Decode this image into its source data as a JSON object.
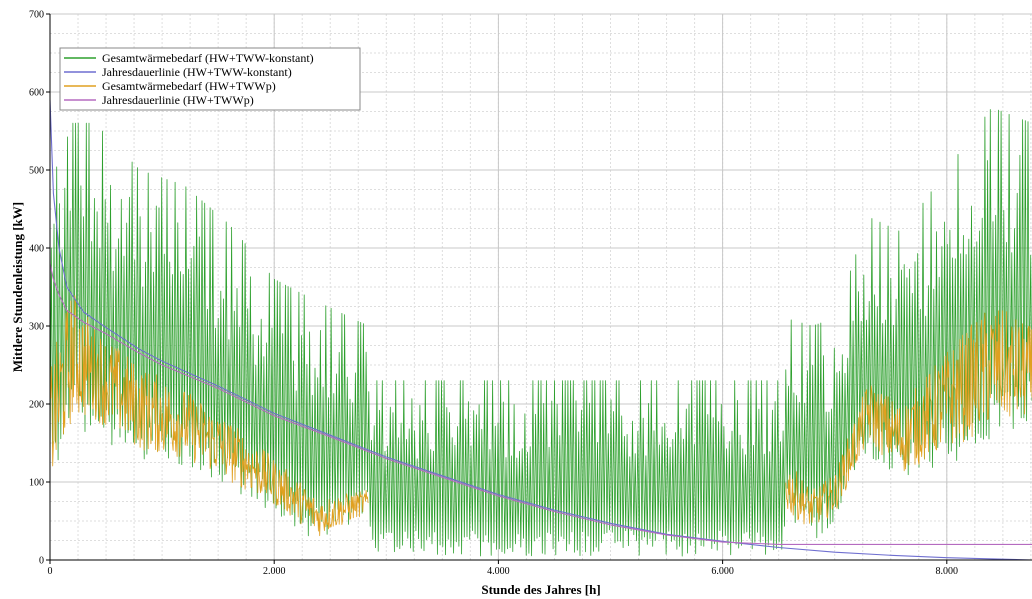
{
  "chart_data": {
    "type": "line",
    "title": "",
    "xlabel": "Stunde des Jahres [h]",
    "ylabel": "Mittlere Stundenleistung [kW]",
    "xlim": [
      0,
      8760
    ],
    "ylim": [
      0,
      700
    ],
    "x_ticks": [
      0,
      2000,
      4000,
      6000,
      8000
    ],
    "x_tick_labels": [
      "0",
      "2.000",
      "4.000",
      "6.000",
      "8.000"
    ],
    "y_ticks": [
      0,
      100,
      200,
      300,
      400,
      500,
      600,
      700
    ],
    "y_tick_labels": [
      "0",
      "100",
      "200",
      "300",
      "400",
      "500",
      "600",
      "700"
    ],
    "grid": true,
    "legend_position": "top-left",
    "series": [
      {
        "name": "Gesamtwärmebedarf (HW+TWW-konstant)",
        "color": "#2ea02e",
        "style": "daily-oscillating",
        "envelope": {
          "x": [
            0,
            200,
            400,
            800,
            1200,
            1600,
            2000,
            2400,
            2840,
            2860,
            4000,
            5000,
            6000,
            6540,
            6560,
            6800,
            7000,
            7300,
            7600,
            8000,
            8400,
            8760
          ],
          "low": [
            80,
            180,
            150,
            130,
            120,
            90,
            60,
            20,
            60,
            5,
            5,
            5,
            5,
            5,
            60,
            20,
            50,
            130,
            100,
            120,
            150,
            180
          ],
          "high": [
            480,
            560,
            560,
            500,
            480,
            430,
            360,
            330,
            300,
            230,
            230,
            230,
            230,
            230,
            310,
            300,
            310,
            440,
            420,
            500,
            580,
            560
          ]
        }
      },
      {
        "name": "Jahresdauerlinie (HW+TWW-konstant)",
        "color": "#6f6fd0",
        "style": "smooth",
        "x": [
          0,
          30,
          80,
          150,
          300,
          500,
          800,
          1000,
          1500,
          2000,
          2500,
          3000,
          3500,
          4000,
          4500,
          5000,
          5500,
          6000,
          6500,
          7000,
          7500,
          8000,
          8500,
          8760
        ],
        "y": [
          590,
          470,
          400,
          350,
          318,
          298,
          270,
          255,
          223,
          188,
          160,
          132,
          108,
          84,
          64,
          47,
          33,
          24,
          16,
          10,
          6,
          3,
          1,
          0
        ]
      },
      {
        "name": "Gesamtwärmebedarf (HW+TWWp)",
        "color": "#e0a020",
        "style": "noisy",
        "envelope": {
          "x": [
            0,
            200,
            400,
            800,
            1200,
            1600,
            2000,
            2400,
            2840,
            2860,
            6540,
            6560,
            6800,
            7000,
            7300,
            7600,
            8000,
            8400,
            8760
          ],
          "low": [
            90,
            180,
            180,
            140,
            130,
            100,
            70,
            30,
            60,
            null,
            null,
            60,
            40,
            60,
            150,
            110,
            140,
            170,
            180
          ],
          "high": [
            250,
            350,
            300,
            250,
            220,
            180,
            130,
            80,
            90,
            null,
            null,
            130,
            90,
            110,
            230,
            200,
            270,
            330,
            300
          ]
        }
      },
      {
        "name": "Jahresdauerlinie (HW+TWWp)",
        "color": "#b56bc0",
        "style": "smooth",
        "x": [
          0,
          30,
          80,
          150,
          300,
          500,
          800,
          1000,
          1500,
          2000,
          2500,
          3000,
          3500,
          4000,
          4500,
          5000,
          5500,
          6000,
          6500,
          6600,
          7000,
          8000,
          8760
        ],
        "y": [
          380,
          360,
          340,
          320,
          305,
          290,
          265,
          250,
          220,
          185,
          158,
          130,
          106,
          82,
          62,
          45,
          32,
          23,
          20,
          20,
          20,
          20,
          20
        ]
      }
    ]
  }
}
